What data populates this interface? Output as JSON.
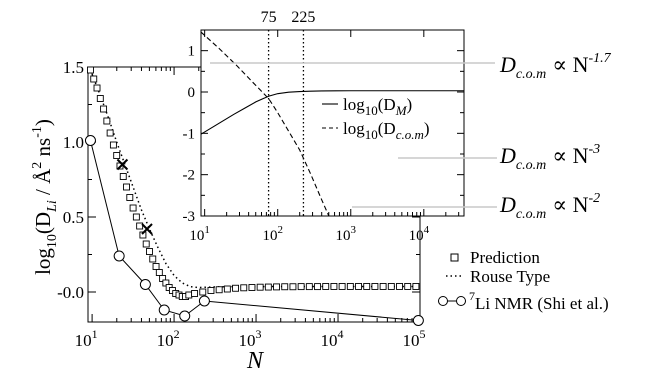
{
  "chart_data": [
    {
      "type": "scatter",
      "panel": "main",
      "xscale": "log",
      "xlim_exp": [
        0.95,
        5.0
      ],
      "ylim": [
        -0.2,
        1.5
      ],
      "xlabel": "N",
      "ylabel": {
        "prefix": "log",
        "sub10": "10",
        "open": "(D",
        "subLi": "Li",
        "mid": " / Å",
        "sup2": "2",
        "ns": " ns",
        "supm1": "-1",
        "close": ")"
      },
      "x_ticks": [
        {
          "base": "10",
          "exp": "1"
        },
        {
          "base": "10",
          "exp": "2"
        },
        {
          "base": "10",
          "exp": "3"
        },
        {
          "base": "10",
          "exp": "4"
        },
        {
          "base": "10",
          "exp": "5"
        }
      ],
      "y_ticks": [
        "-0.0",
        "0.5",
        "1.0",
        "1.5"
      ],
      "legend_position": "bottom-right",
      "series": [
        {
          "name": "Prediction",
          "marker": "open-square",
          "log10_x": [
            0.98,
            1.02,
            1.06,
            1.1,
            1.14,
            1.18,
            1.22,
            1.26,
            1.3,
            1.34,
            1.38,
            1.42,
            1.46,
            1.5,
            1.54,
            1.58,
            1.62,
            1.66,
            1.7,
            1.74,
            1.78,
            1.82,
            1.86,
            1.9,
            1.94,
            1.98,
            2.02,
            2.06,
            2.1,
            2.14,
            2.18,
            2.25,
            2.35,
            2.45,
            2.55,
            2.65,
            2.75,
            2.85,
            2.95,
            3.05,
            3.15,
            3.25,
            3.35,
            3.45,
            3.55,
            3.65,
            3.75,
            3.85,
            3.95,
            4.05,
            4.15,
            4.25,
            4.35,
            4.45,
            4.55,
            4.65,
            4.75,
            4.85,
            4.95
          ],
          "y": [
            1.48,
            1.42,
            1.36,
            1.29,
            1.22,
            1.14,
            1.06,
            0.98,
            0.91,
            0.84,
            0.77,
            0.7,
            0.63,
            0.56,
            0.5,
            0.44,
            0.38,
            0.32,
            0.27,
            0.22,
            0.17,
            0.13,
            0.09,
            0.06,
            0.03,
            0.01,
            -0.01,
            -0.02,
            -0.03,
            -0.03,
            -0.02,
            -0.01,
            0.0,
            0.01,
            0.015,
            0.02,
            0.025,
            0.028,
            0.03,
            0.032,
            0.033,
            0.034,
            0.035,
            0.035,
            0.036,
            0.036,
            0.036,
            0.037,
            0.037,
            0.037,
            0.037,
            0.037,
            0.037,
            0.037,
            0.037,
            0.037,
            0.037,
            0.037,
            0.037
          ]
        },
        {
          "name": "Rouse Type",
          "line": "dotted",
          "log10_x": [
            0.98,
            1.1,
            1.2,
            1.3,
            1.4,
            1.5,
            1.6,
            1.7,
            1.8,
            1.9,
            2.0,
            2.1,
            2.2,
            2.3,
            2.4,
            2.5,
            2.6,
            2.75,
            3.0,
            3.5,
            4.0,
            4.5,
            4.97
          ],
          "y": [
            1.48,
            1.31,
            1.16,
            1.0,
            0.85,
            0.7,
            0.55,
            0.42,
            0.3,
            0.19,
            0.11,
            0.06,
            0.035,
            0.03,
            0.032,
            0.034,
            0.035,
            0.036,
            0.036,
            0.037,
            0.037,
            0.037,
            0.037
          ]
        },
        {
          "name": "Li NMR (Shi et al.)",
          "name_sup": "7",
          "marker": "open-circle",
          "line": "solid",
          "log10_x": [
            0.98,
            1.33,
            1.65,
            1.88,
            2.13,
            2.37,
            4.98
          ],
          "y": [
            1.01,
            0.24,
            0.05,
            -0.12,
            -0.16,
            -0.06,
            -0.19
          ]
        },
        {
          "name": "crosses",
          "marker": "x",
          "log10_x": [
            1.37,
            1.67
          ],
          "y": [
            0.85,
            0.42
          ]
        }
      ]
    },
    {
      "type": "line",
      "panel": "inset",
      "xscale": "log",
      "xlim_exp": [
        0.95,
        4.55
      ],
      "ylim": [
        -3,
        1.5
      ],
      "x_ticks": [
        {
          "base": "10",
          "exp": "1"
        },
        {
          "base": "10",
          "exp": "2"
        },
        {
          "base": "10",
          "exp": "3"
        },
        {
          "base": "10",
          "exp": "4"
        }
      ],
      "y_ticks": [
        "-3",
        "-2",
        "-1",
        "0",
        "1"
      ],
      "top_ticks": [
        "75",
        "225"
      ],
      "vlines_x": [
        75,
        225
      ],
      "series": [
        {
          "name": "log10(D_M)",
          "label": {
            "prefix": "log",
            "sub10": "10",
            "open": "(D",
            "sub": "M",
            "close": ")"
          },
          "line": "solid",
          "log10_x": [
            0.95,
            1.1,
            1.25,
            1.4,
            1.55,
            1.7,
            1.8,
            1.88,
            2.0,
            2.15,
            2.3,
            2.45,
            2.6,
            2.8,
            3.0,
            3.3,
            3.6,
            4.0,
            4.55
          ],
          "y": [
            -1.02,
            -0.86,
            -0.7,
            -0.54,
            -0.39,
            -0.24,
            -0.16,
            -0.1,
            -0.04,
            -0.005,
            0.01,
            0.02,
            0.025,
            0.028,
            0.03,
            0.03,
            0.03,
            0.03,
            0.03
          ]
        },
        {
          "name": "log10(D_c.o.m)",
          "label": {
            "prefix": "log",
            "sub10": "10",
            "open": "(D",
            "sub": "c.o.m",
            "close": ")"
          },
          "line": "dashed",
          "log10_x": [
            0.95,
            1.2,
            1.45,
            1.65,
            1.8,
            1.88,
            2.0,
            2.15,
            2.3,
            2.45,
            2.6,
            2.7
          ],
          "y": [
            1.45,
            1.05,
            0.62,
            0.25,
            -0.02,
            -0.17,
            -0.5,
            -0.95,
            -1.4,
            -1.98,
            -2.6,
            -3.0
          ]
        }
      ]
    }
  ],
  "annotations": [
    {
      "id": "a1",
      "D": "D",
      "sub": "c.o.m",
      "prop": "∝ N",
      "exp": "-1.7"
    },
    {
      "id": "a2",
      "D": "D",
      "sub": "c.o.m",
      "prop": "∝ N",
      "exp": "-3"
    },
    {
      "id": "a3",
      "D": "D",
      "sub": "c.o.m",
      "prop": "∝ N",
      "exp": "-2"
    }
  ],
  "colors": {
    "ink": "#000000",
    "pointer": "#c8c8c8",
    "background": "#ffffff"
  }
}
